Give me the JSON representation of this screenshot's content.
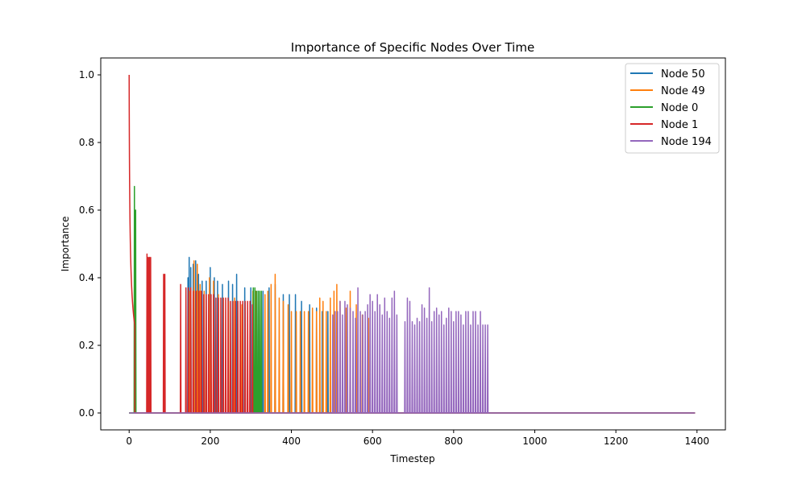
{
  "chart_data": {
    "type": "line",
    "title": "Importance of Specific Nodes Over Time",
    "xlabel": "Timestep",
    "ylabel": "Importance",
    "xlim": [
      -70,
      1470
    ],
    "ylim": [
      -0.05,
      1.05
    ],
    "xticks": [
      0,
      200,
      400,
      600,
      800,
      1000,
      1200,
      1400
    ],
    "yticks": [
      0.0,
      0.2,
      0.4,
      0.6,
      0.8,
      1.0
    ],
    "grid": false,
    "legend_position": "top-right",
    "x_end": 1395,
    "series": [
      {
        "name": "Node 50",
        "color": "#1f77b4",
        "spikes": [
          [
            145,
            0.4
          ],
          [
            148,
            0.46
          ],
          [
            152,
            0.43
          ],
          [
            158,
            0.44
          ],
          [
            164,
            0.45
          ],
          [
            171,
            0.41
          ],
          [
            180,
            0.39
          ],
          [
            190,
            0.39
          ],
          [
            200,
            0.43
          ],
          [
            210,
            0.4
          ],
          [
            218,
            0.39
          ],
          [
            230,
            0.38
          ],
          [
            245,
            0.39
          ],
          [
            255,
            0.38
          ],
          [
            265,
            0.41
          ],
          [
            285,
            0.37
          ],
          [
            300,
            0.37
          ],
          [
            318,
            0.36
          ],
          [
            330,
            0.36
          ],
          [
            345,
            0.37
          ],
          [
            360,
            0.38
          ],
          [
            380,
            0.35
          ],
          [
            395,
            0.35
          ],
          [
            410,
            0.35
          ],
          [
            425,
            0.33
          ],
          [
            445,
            0.32
          ],
          [
            462,
            0.31
          ],
          [
            476,
            0.3
          ],
          [
            490,
            0.3
          ]
        ]
      },
      {
        "name": "Node 49",
        "color": "#ff7f0e",
        "spikes": [
          [
            150,
            0.36
          ],
          [
            160,
            0.45
          ],
          [
            168,
            0.44
          ],
          [
            175,
            0.38
          ],
          [
            185,
            0.36
          ],
          [
            198,
            0.4
          ],
          [
            208,
            0.39
          ],
          [
            220,
            0.35
          ],
          [
            232,
            0.34
          ],
          [
            245,
            0.33
          ],
          [
            260,
            0.34
          ],
          [
            278,
            0.32
          ],
          [
            305,
            0.36
          ],
          [
            312,
            0.36
          ],
          [
            322,
            0.35
          ],
          [
            335,
            0.35
          ],
          [
            342,
            0.36
          ],
          [
            350,
            0.38
          ],
          [
            360,
            0.41
          ],
          [
            370,
            0.34
          ],
          [
            380,
            0.33
          ],
          [
            392,
            0.32
          ],
          [
            400,
            0.3
          ],
          [
            412,
            0.3
          ],
          [
            422,
            0.3
          ],
          [
            432,
            0.3
          ],
          [
            442,
            0.3
          ],
          [
            452,
            0.31
          ],
          [
            462,
            0.3
          ],
          [
            470,
            0.34
          ],
          [
            478,
            0.33
          ],
          [
            486,
            0.3
          ],
          [
            496,
            0.34
          ],
          [
            505,
            0.36
          ],
          [
            512,
            0.38
          ],
          [
            520,
            0.33
          ],
          [
            535,
            0.31
          ],
          [
            545,
            0.36
          ],
          [
            560,
            0.32
          ],
          [
            575,
            0.29
          ],
          [
            590,
            0.28
          ]
        ]
      },
      {
        "name": "Node 0",
        "color": "#2ca02c",
        "spikes": [
          [
            13,
            0.67
          ],
          [
            16,
            0.6
          ],
          [
            306,
            0.37
          ],
          [
            310,
            0.37
          ],
          [
            314,
            0.36
          ],
          [
            318,
            0.36
          ],
          [
            322,
            0.36
          ],
          [
            326,
            0.36
          ]
        ]
      },
      {
        "name": "Node 1",
        "color": "#d62728",
        "decay_end": 14,
        "spikes": [
          [
            44,
            0.47
          ],
          [
            47,
            0.46
          ],
          [
            50,
            0.46
          ],
          [
            53,
            0.46
          ],
          [
            85,
            0.41
          ],
          [
            88,
            0.41
          ],
          [
            127,
            0.38
          ],
          [
            140,
            0.37
          ],
          [
            146,
            0.37
          ],
          [
            152,
            0.37
          ],
          [
            158,
            0.36
          ],
          [
            165,
            0.36
          ],
          [
            172,
            0.36
          ],
          [
            178,
            0.36
          ],
          [
            184,
            0.35
          ],
          [
            190,
            0.35
          ],
          [
            196,
            0.35
          ],
          [
            202,
            0.35
          ],
          [
            208,
            0.35
          ],
          [
            214,
            0.34
          ],
          [
            220,
            0.34
          ],
          [
            226,
            0.34
          ],
          [
            232,
            0.34
          ],
          [
            238,
            0.34
          ],
          [
            244,
            0.34
          ],
          [
            250,
            0.33
          ],
          [
            256,
            0.33
          ],
          [
            262,
            0.33
          ],
          [
            268,
            0.33
          ],
          [
            274,
            0.33
          ],
          [
            280,
            0.33
          ],
          [
            286,
            0.33
          ],
          [
            292,
            0.33
          ],
          [
            298,
            0.33
          ],
          [
            304,
            0.32
          ]
        ]
      },
      {
        "name": "Node 194",
        "color": "#9467bd",
        "spikes": [
          [
            502,
            0.29
          ],
          [
            508,
            0.3
          ],
          [
            514,
            0.3
          ],
          [
            520,
            0.33
          ],
          [
            526,
            0.29
          ],
          [
            532,
            0.33
          ],
          [
            538,
            0.32
          ],
          [
            545,
            0.31
          ],
          [
            552,
            0.3
          ],
          [
            558,
            0.28
          ],
          [
            564,
            0.37
          ],
          [
            570,
            0.3
          ],
          [
            576,
            0.29
          ],
          [
            582,
            0.3
          ],
          [
            588,
            0.32
          ],
          [
            594,
            0.35
          ],
          [
            600,
            0.33
          ],
          [
            606,
            0.3
          ],
          [
            612,
            0.35
          ],
          [
            618,
            0.32
          ],
          [
            624,
            0.29
          ],
          [
            630,
            0.34
          ],
          [
            636,
            0.3
          ],
          [
            642,
            0.28
          ],
          [
            648,
            0.34
          ],
          [
            654,
            0.36
          ],
          [
            660,
            0.29
          ],
          [
            680,
            0.27
          ],
          [
            686,
            0.34
          ],
          [
            692,
            0.33
          ],
          [
            698,
            0.27
          ],
          [
            704,
            0.26
          ],
          [
            710,
            0.28
          ],
          [
            716,
            0.27
          ],
          [
            722,
            0.32
          ],
          [
            728,
            0.31
          ],
          [
            734,
            0.28
          ],
          [
            740,
            0.37
          ],
          [
            746,
            0.27
          ],
          [
            752,
            0.3
          ],
          [
            758,
            0.31
          ],
          [
            764,
            0.29
          ],
          [
            770,
            0.3
          ],
          [
            776,
            0.26
          ],
          [
            782,
            0.28
          ],
          [
            788,
            0.31
          ],
          [
            794,
            0.3
          ],
          [
            800,
            0.27
          ],
          [
            806,
            0.3
          ],
          [
            812,
            0.3
          ],
          [
            818,
            0.29
          ],
          [
            824,
            0.26
          ],
          [
            830,
            0.3
          ],
          [
            836,
            0.3
          ],
          [
            842,
            0.26
          ],
          [
            848,
            0.3
          ],
          [
            854,
            0.3
          ],
          [
            860,
            0.26
          ],
          [
            866,
            0.3
          ],
          [
            872,
            0.26
          ],
          [
            878,
            0.26
          ],
          [
            884,
            0.26
          ]
        ]
      }
    ]
  }
}
